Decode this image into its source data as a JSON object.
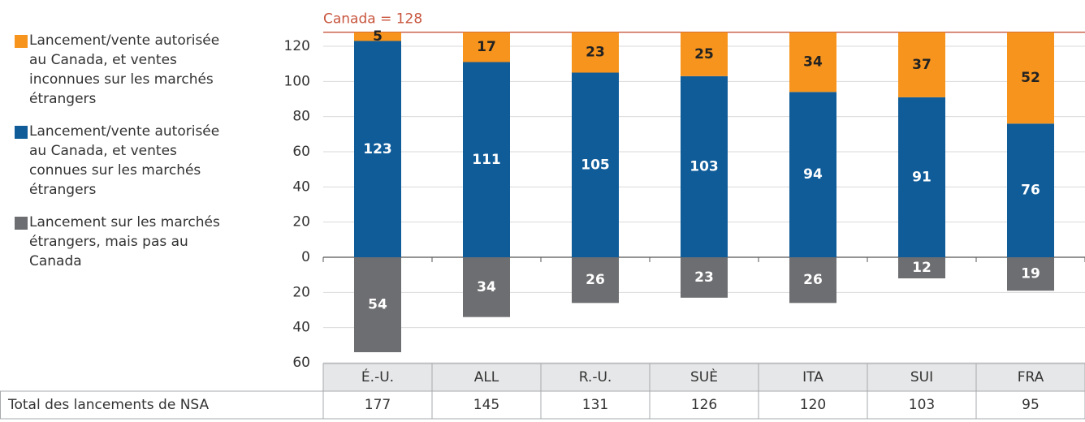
{
  "chart_data": {
    "type": "bar",
    "stacked": true,
    "categories": [
      "É.-U.",
      "ALL",
      "R.-U.",
      "SUÈ",
      "ITA",
      "SUI",
      "FRA"
    ],
    "series": [
      {
        "name": "Lancement/vente autorisée au Canada, et ventes inconnues sur les marchés étrangers",
        "color": "#f7941d",
        "values": [
          5,
          17,
          23,
          25,
          34,
          37,
          52
        ]
      },
      {
        "name": "Lancement/vente autorisée au Canada, et ventes connues sur les marchés étrangers",
        "color": "#0f5c99",
        "values": [
          123,
          111,
          105,
          103,
          94,
          91,
          76
        ]
      },
      {
        "name": "Lancement sur les marchés étrangers, mais pas au Canada",
        "color": "#6d6e71",
        "values": [
          -54,
          -34,
          -26,
          -23,
          -26,
          -12,
          -19
        ],
        "value_labels": [
          "54",
          "34",
          "26",
          "23",
          "26",
          "12",
          "19"
        ]
      }
    ],
    "ylim": [
      -60,
      128
    ],
    "yticks": [
      {
        "value": -60,
        "label": "60"
      },
      {
        "value": -40,
        "label": "40"
      },
      {
        "value": -20,
        "label": "20"
      },
      0,
      20,
      40,
      60,
      80,
      100,
      120
    ],
    "grid": true,
    "reference_line": {
      "value": 128,
      "label": "Canada = 128",
      "color": "#c8553d"
    },
    "legend": "left"
  },
  "table": {
    "row_label": "Total des lancements de NSA",
    "values": [
      177,
      145,
      131,
      126,
      120,
      103,
      95
    ]
  }
}
